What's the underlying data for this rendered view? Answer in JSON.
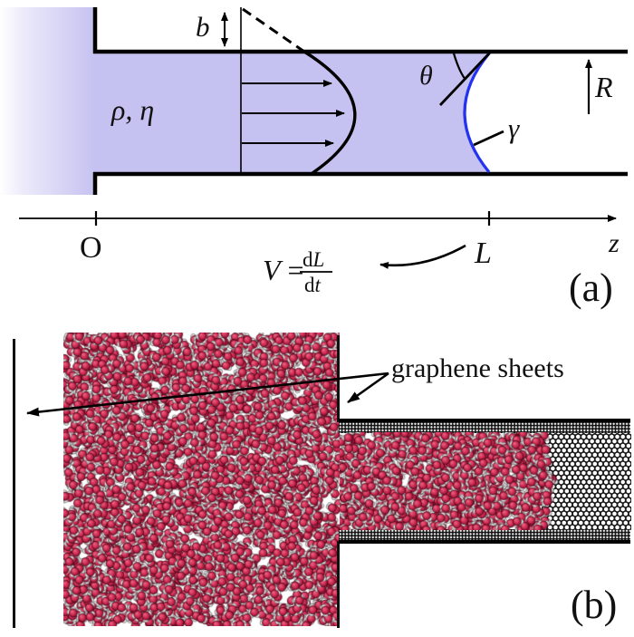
{
  "panel_a": {
    "tag": "(a)",
    "labels": {
      "slip_length": "b",
      "fluid_props": "ρ, η",
      "contact_angle": "θ",
      "surface_tension": "γ",
      "radius": "R",
      "origin": "O",
      "fill_length": "L",
      "axis": "z"
    },
    "formula": {
      "lhs": "V",
      "eq": " = ",
      "num_d": "d",
      "num_var": "L",
      "den_d": "d",
      "den_var": "t"
    },
    "colors": {
      "fluid": "#c5c2f1",
      "fluid_light": "#ffffff",
      "meniscus": "#2433ee",
      "wall": "#000000"
    }
  },
  "panel_b": {
    "tag": "(b)",
    "annotation": "graphene sheets",
    "colors": {
      "oxygen": "#cf2a52",
      "oxygen_hi": "#e8607e",
      "oxygen_edge": "#7c0e2c",
      "hydrogen": "#efefef",
      "hydrogen_edge": "#7e7e7e",
      "carbon": "#111111"
    }
  }
}
